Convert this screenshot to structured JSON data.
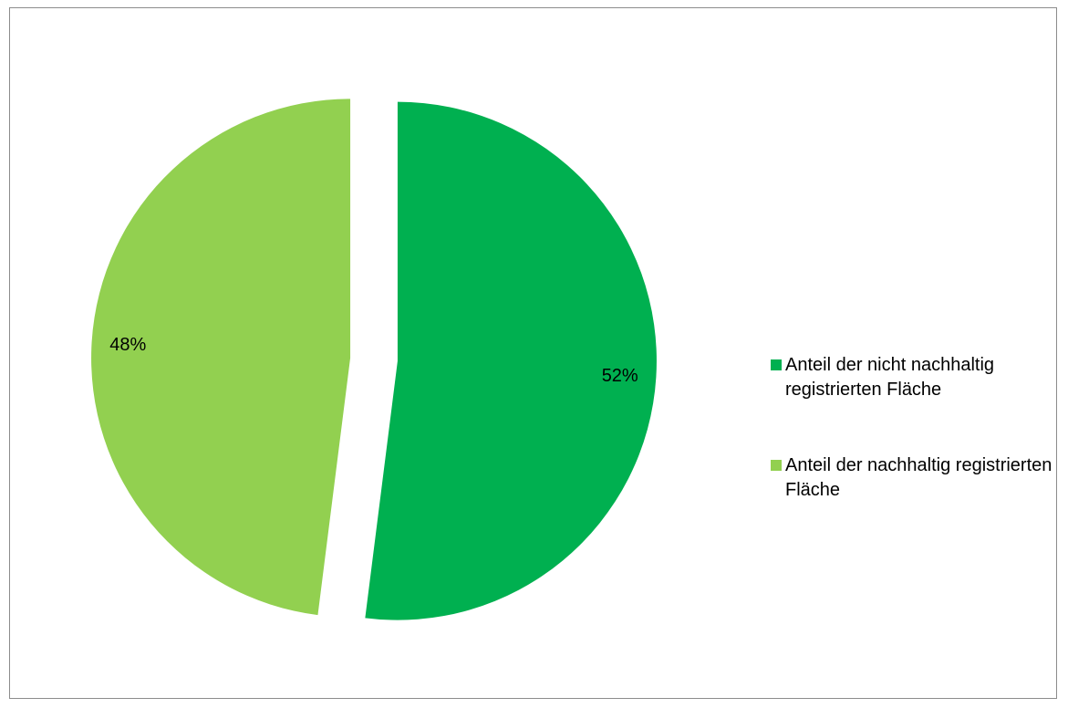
{
  "chart_data": {
    "type": "pie",
    "title": "",
    "slices": [
      {
        "label": "Anteil der nicht nachhaltig registrierten Fläche",
        "value": 52,
        "value_label": "52%",
        "color": "#00b050",
        "exploded": true
      },
      {
        "label": "Anteil der nachhaltig registrierten Fläche",
        "value": 48,
        "value_label": "48%",
        "color": "#92d050",
        "exploded": true
      }
    ],
    "legend_position": "right",
    "start_angle_deg": 0,
    "direction": "clockwise"
  }
}
